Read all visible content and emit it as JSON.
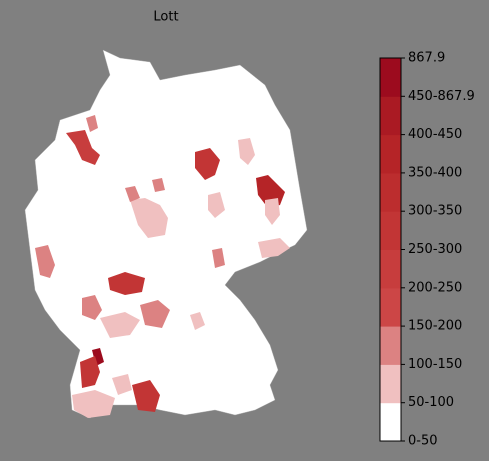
{
  "title": "Lott",
  "legend": {
    "labels": [
      "0-50",
      "50-100",
      "100-150",
      "150-200",
      "200-250",
      "250-300",
      "300-350",
      "350-400",
      "400-450",
      "450-867.9",
      "867.9"
    ],
    "colors": [
      "#ffffff",
      "#f0c0c0",
      "#dc8282",
      "#cc4646",
      "#c73d3d",
      "#c23535",
      "#bc2d2e",
      "#b52427",
      "#aa1a23",
      "#9c0b1e"
    ]
  }
}
